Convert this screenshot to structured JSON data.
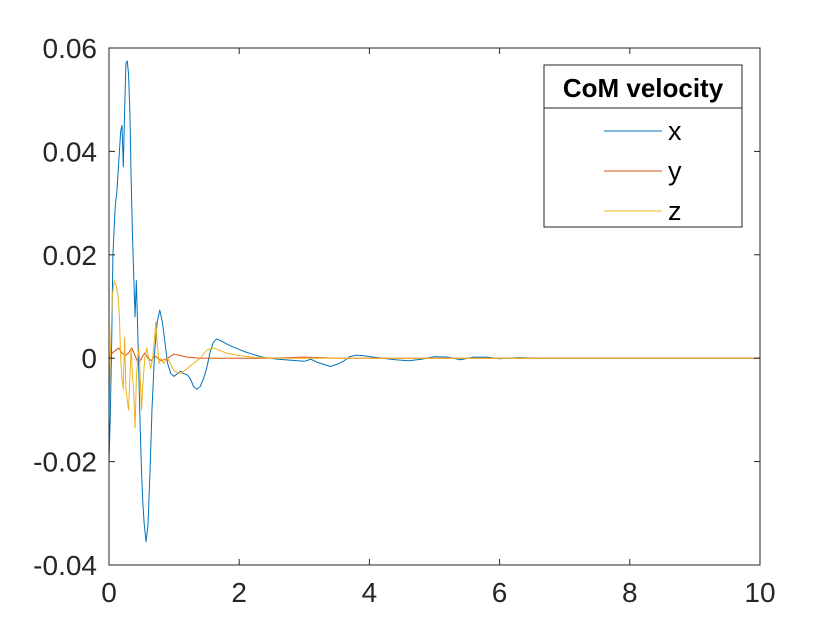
{
  "chart_data": {
    "type": "line",
    "title": "",
    "xlabel": "",
    "ylabel": "",
    "xlim": [
      0,
      10
    ],
    "ylim": [
      -0.04,
      0.06
    ],
    "xticks": [
      0,
      2,
      4,
      6,
      8,
      10
    ],
    "xtick_labels": [
      "0",
      "2",
      "4",
      "6",
      "8",
      "10"
    ],
    "yticks": [
      -0.04,
      -0.02,
      0,
      0.02,
      0.04,
      0.06
    ],
    "ytick_labels": [
      "-0.04",
      "-0.02",
      "0",
      "0.02",
      "0.04",
      "0.06"
    ],
    "grid": false,
    "legend": {
      "title": "CoM velocity",
      "placement": "top-right"
    },
    "series": [
      {
        "name": "x",
        "color": "#0072BD",
        "points": [
          [
            0.0,
            -0.02
          ],
          [
            0.02,
            -0.011
          ],
          [
            0.04,
            0.002
          ],
          [
            0.06,
            0.02
          ],
          [
            0.09,
            0.028
          ],
          [
            0.1,
            0.03
          ],
          [
            0.12,
            0.032
          ],
          [
            0.14,
            0.036
          ],
          [
            0.16,
            0.04
          ],
          [
            0.18,
            0.044
          ],
          [
            0.2,
            0.045
          ],
          [
            0.22,
            0.037
          ],
          [
            0.24,
            0.048
          ],
          [
            0.26,
            0.057
          ],
          [
            0.28,
            0.0575
          ],
          [
            0.3,
            0.055
          ],
          [
            0.32,
            0.048
          ],
          [
            0.34,
            0.035
          ],
          [
            0.36,
            0.024
          ],
          [
            0.38,
            0.016
          ],
          [
            0.4,
            0.008
          ],
          [
            0.42,
            0.015
          ],
          [
            0.44,
            0.006
          ],
          [
            0.46,
            -0.004
          ],
          [
            0.48,
            -0.014
          ],
          [
            0.5,
            -0.022
          ],
          [
            0.52,
            -0.028
          ],
          [
            0.54,
            -0.032
          ],
          [
            0.57,
            -0.0355
          ],
          [
            0.6,
            -0.032
          ],
          [
            0.63,
            -0.022
          ],
          [
            0.66,
            -0.01
          ],
          [
            0.7,
            0.001
          ],
          [
            0.74,
            0.007
          ],
          [
            0.78,
            0.0093
          ],
          [
            0.82,
            0.007
          ],
          [
            0.86,
            0.003
          ],
          [
            0.9,
            -0.001
          ],
          [
            0.95,
            -0.003
          ],
          [
            1.0,
            -0.0035
          ],
          [
            1.05,
            -0.003
          ],
          [
            1.1,
            -0.0025
          ],
          [
            1.15,
            -0.003
          ],
          [
            1.2,
            -0.0032
          ],
          [
            1.25,
            -0.004
          ],
          [
            1.3,
            -0.0055
          ],
          [
            1.35,
            -0.006
          ],
          [
            1.4,
            -0.0055
          ],
          [
            1.45,
            -0.004
          ],
          [
            1.5,
            -0.002
          ],
          [
            1.55,
            0.001
          ],
          [
            1.6,
            0.003
          ],
          [
            1.65,
            0.0037
          ],
          [
            1.7,
            0.0035
          ],
          [
            1.8,
            0.0028
          ],
          [
            1.9,
            0.0022
          ],
          [
            2.0,
            0.0017
          ],
          [
            2.1,
            0.0012
          ],
          [
            2.2,
            0.0008
          ],
          [
            2.3,
            0.0004
          ],
          [
            2.4,
            0.0001
          ],
          [
            2.6,
            -0.0002
          ],
          [
            2.8,
            -0.0004
          ],
          [
            3.0,
            -0.0006
          ],
          [
            3.1,
            -0.0002
          ],
          [
            3.2,
            -0.0008
          ],
          [
            3.3,
            -0.0012
          ],
          [
            3.4,
            -0.0016
          ],
          [
            3.5,
            -0.0012
          ],
          [
            3.6,
            -0.0006
          ],
          [
            3.7,
            0.0003
          ],
          [
            3.8,
            0.0006
          ],
          [
            3.9,
            0.0005
          ],
          [
            4.0,
            0.0003
          ],
          [
            4.2,
            0.0
          ],
          [
            4.4,
            -0.0003
          ],
          [
            4.6,
            -0.0005
          ],
          [
            4.8,
            -0.0002
          ],
          [
            5.0,
            0.0003
          ],
          [
            5.2,
            0.0002
          ],
          [
            5.4,
            -0.0003
          ],
          [
            5.6,
            0.0002
          ],
          [
            5.8,
            0.0002
          ],
          [
            6.0,
            -0.0001
          ],
          [
            6.3,
            0.0001
          ],
          [
            6.6,
            0.0
          ],
          [
            7.0,
            0.0
          ],
          [
            8.0,
            0.0
          ],
          [
            9.0,
            0.0
          ],
          [
            10.0,
            0.0
          ]
        ]
      },
      {
        "name": "y",
        "color": "#D95319",
        "points": [
          [
            0.0,
            0.0
          ],
          [
            0.05,
            0.001
          ],
          [
            0.1,
            0.0015
          ],
          [
            0.15,
            0.002
          ],
          [
            0.2,
            0.001
          ],
          [
            0.25,
            0.0005
          ],
          [
            0.3,
            0.001
          ],
          [
            0.35,
            0.002
          ],
          [
            0.4,
            0.0005
          ],
          [
            0.45,
            -0.001
          ],
          [
            0.5,
            0.0
          ],
          [
            0.55,
            0.001
          ],
          [
            0.6,
            0.0
          ],
          [
            0.65,
            -0.0005
          ],
          [
            0.7,
            0.0005
          ],
          [
            0.8,
            -0.0005
          ],
          [
            0.9,
            0.0
          ],
          [
            1.0,
            0.0008
          ],
          [
            1.1,
            0.0005
          ],
          [
            1.2,
            0.0002
          ],
          [
            1.4,
            0.0
          ],
          [
            1.6,
            0.0
          ],
          [
            1.8,
            0.0
          ],
          [
            2.0,
            0.0
          ],
          [
            2.5,
            0.0
          ],
          [
            3.0,
            0.0002
          ],
          [
            3.5,
            0.0
          ],
          [
            4.0,
            0.0
          ],
          [
            5.0,
            0.0
          ],
          [
            6.0,
            0.0
          ],
          [
            7.0,
            0.0
          ],
          [
            8.0,
            0.0
          ],
          [
            9.0,
            0.0
          ],
          [
            10.0,
            0.0
          ]
        ]
      },
      {
        "name": "z",
        "color": "#EDB120",
        "points": [
          [
            0.0,
            -0.01
          ],
          [
            0.02,
            0.0
          ],
          [
            0.05,
            0.012
          ],
          [
            0.08,
            0.015
          ],
          [
            0.11,
            0.014
          ],
          [
            0.14,
            0.012
          ],
          [
            0.16,
            0.008
          ],
          [
            0.18,
            0.0
          ],
          [
            0.2,
            -0.004
          ],
          [
            0.22,
            -0.006
          ],
          [
            0.24,
            0.004
          ],
          [
            0.26,
            -0.006
          ],
          [
            0.28,
            -0.008
          ],
          [
            0.3,
            -0.01
          ],
          [
            0.32,
            -0.004
          ],
          [
            0.34,
            0.002
          ],
          [
            0.36,
            -0.003
          ],
          [
            0.38,
            -0.007
          ],
          [
            0.4,
            -0.0135
          ],
          [
            0.42,
            -0.004
          ],
          [
            0.44,
            0.0
          ],
          [
            0.46,
            0.002
          ],
          [
            0.48,
            -0.004
          ],
          [
            0.5,
            -0.01
          ],
          [
            0.52,
            -0.005
          ],
          [
            0.55,
            0.0
          ],
          [
            0.58,
            0.002
          ],
          [
            0.61,
            0.0
          ],
          [
            0.64,
            -0.002
          ],
          [
            0.67,
            0.0
          ],
          [
            0.7,
            0.004
          ],
          [
            0.72,
            0.007
          ],
          [
            0.74,
            0.003
          ],
          [
            0.77,
            -0.001
          ],
          [
            0.8,
            0.0
          ],
          [
            0.84,
            -0.001
          ],
          [
            0.9,
            0.0
          ],
          [
            1.0,
            -0.0025
          ],
          [
            1.1,
            -0.003
          ],
          [
            1.2,
            -0.002
          ],
          [
            1.3,
            -0.001
          ],
          [
            1.4,
            0.0
          ],
          [
            1.5,
            0.0015
          ],
          [
            1.6,
            0.002
          ],
          [
            1.7,
            0.0015
          ],
          [
            1.8,
            0.001
          ],
          [
            2.0,
            0.0005
          ],
          [
            2.2,
            0.0002
          ],
          [
            2.5,
            0.0
          ],
          [
            3.0,
            0.0
          ],
          [
            4.0,
            0.0
          ],
          [
            5.0,
            0.0
          ],
          [
            6.0,
            0.0
          ],
          [
            7.0,
            0.0
          ],
          [
            8.0,
            0.0
          ],
          [
            9.0,
            0.0
          ],
          [
            10.0,
            0.0
          ]
        ]
      }
    ]
  }
}
